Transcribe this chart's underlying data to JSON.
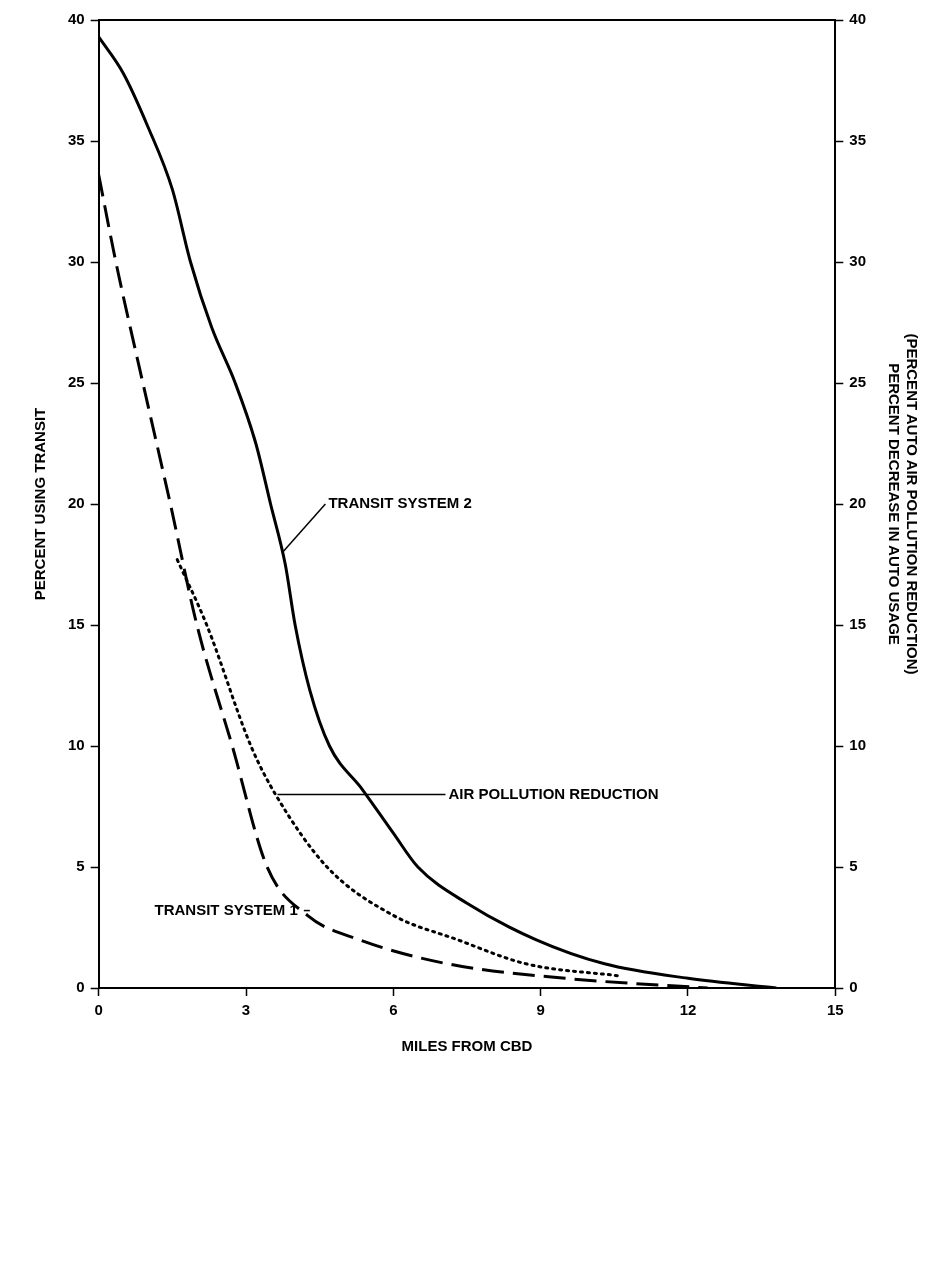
{
  "chart_data": {
    "type": "line",
    "xlabel": "MILES FROM CBD",
    "ylabel": "PERCENT USING TRANSIT",
    "y2label": "(PERCENT AUTO AIR POLLUTION REDUCTION)\nPERCENT DECREASE IN AUTO USAGE",
    "xlim": [
      0,
      15
    ],
    "xticks": [
      0,
      3,
      6,
      9,
      12,
      15
    ],
    "ylim": [
      0,
      40
    ],
    "yticks": [
      0,
      5,
      10,
      15,
      20,
      25,
      30,
      35,
      40
    ],
    "y2lim": [
      0,
      40
    ],
    "y2ticks": [
      0,
      5,
      10,
      15,
      20,
      25,
      30,
      35,
      40
    ],
    "grid": false,
    "legend": false,
    "marker": "none",
    "series": [
      {
        "color": "#000000",
        "line_style": "solid",
        "x": [
          0,
          0.5,
          1,
          1.5,
          1.87,
          2.3,
          2.78,
          3.2,
          3.5,
          3.8,
          4.0,
          4.3,
          4.7,
          5.37,
          6.0,
          6.5,
          7.5,
          8.9,
          10.3,
          12,
          13.8
        ],
        "values": [
          39.3,
          37.8,
          35.6,
          33,
          30,
          27.3,
          25,
          22.5,
          20,
          17.5,
          15,
          12.3,
          10,
          8.2,
          6.4,
          5,
          3.5,
          2,
          1,
          0.4,
          0
        ]
      },
      {
        "color": "#000000",
        "line_style": "dashed",
        "x": [
          0,
          0.35,
          0.9,
          1.46,
          2.0,
          2.72,
          3.43,
          4.25,
          5.3,
          7.1,
          9.5,
          12.4
        ],
        "values": [
          33.6,
          30,
          25,
          20,
          15,
          10,
          5,
          3,
          2,
          1,
          0.4,
          0
        ]
      },
      {
        "color": "#000000",
        "line_style": "dotted",
        "x": [
          1.6,
          2.2,
          3.1,
          3.6,
          4.65,
          6.0,
          7.3,
          8.7,
          10.6
        ],
        "values": [
          17.7,
          15,
          10,
          8,
          5,
          3,
          2,
          1,
          0.5
        ]
      }
    ],
    "annotations": [
      {
        "text": "TRANSIT SYSTEM 2",
        "x": 3.7,
        "y": 18
      },
      {
        "text": "AIR POLLUTION REDUCTION",
        "x": 3.6,
        "y": 8
      },
      {
        "text": "TRANSIT SYSTEM 1",
        "x": 4.3,
        "y": 3.2
      }
    ]
  }
}
